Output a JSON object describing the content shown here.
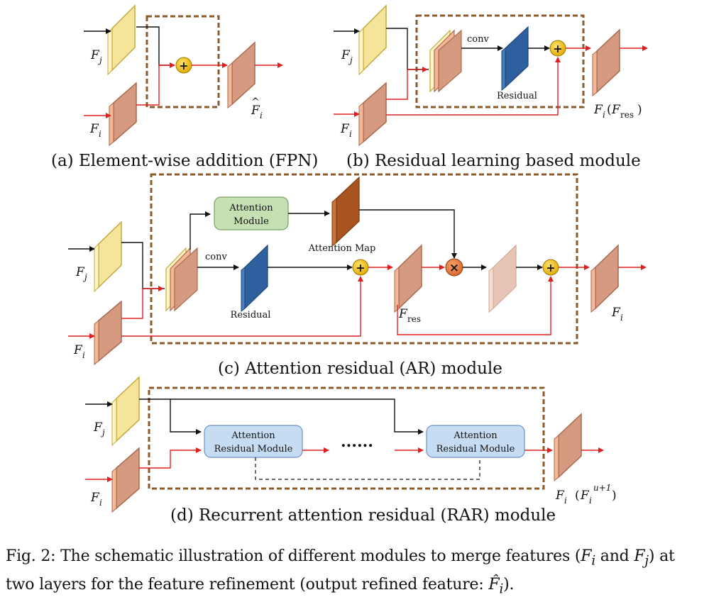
{
  "panels": {
    "a": {
      "caption": "(a) Element-wise addition (FPN)"
    },
    "b": {
      "caption": "(b) Residual learning based module",
      "conv": "conv",
      "residual": "Residual",
      "output_label": "(",
      "output_sub": "res",
      "output_close": ")"
    },
    "c": {
      "caption": "(c) Attention residual (AR) module",
      "attention_module_line1": "Attention",
      "attention_module_line2": "Module",
      "attention_map": "Attention Map",
      "conv": "conv",
      "residual": "Residual",
      "res_sub": "res"
    },
    "d": {
      "caption": "(d) Recurrent attention residual (RAR) module",
      "block_line1": "Attention",
      "block_line2": "Residual Module",
      "ellipsis": "......",
      "out_sup": "u+1"
    }
  },
  "symbols": {
    "F": "F",
    "i": "i",
    "j": "j",
    "plus": "+",
    "times": "×"
  },
  "caption": {
    "part1": "Fig. 2: The schematic illustration of different modules to merge features (",
    "part2": " and",
    "part3": ") at two layers for the feature refinement (output refined feature: ",
    "part4": ")."
  },
  "colors": {
    "dashed_box": "#8b5a2b",
    "red_arrow": "#e02020",
    "blue": "#2e5f9e",
    "attention_map": "#a9541e",
    "green": "#c6e0b4",
    "light_blue": "#c5dcf3",
    "yellow": "#fff2a8",
    "peach": "#f5b896",
    "plus_fill": "#f2c200",
    "times_fill": "#e87a3c"
  }
}
